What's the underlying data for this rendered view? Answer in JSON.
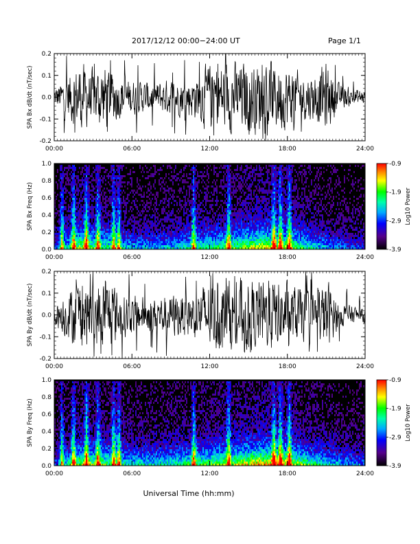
{
  "header": {
    "title": "2017/12/12   00:00−24:00 UT",
    "page": "Page 1/1"
  },
  "chart_data": [
    {
      "type": "line",
      "ylabel": "SPA Bx dB/dt (nT/sec)",
      "xlim": [
        0,
        24
      ],
      "ylim": [
        -0.2,
        0.2
      ],
      "xticks": [
        "00:00",
        "06:00",
        "12:00",
        "18:00",
        "24:00"
      ],
      "yticks": [
        "-0.2",
        "-0.1",
        "0.0",
        "0.1",
        "0.2"
      ],
      "envelope_hours": [
        0,
        1,
        2,
        3,
        4,
        5,
        6,
        7,
        8,
        9,
        10,
        11,
        12,
        13,
        14,
        15,
        16,
        17,
        18,
        19,
        20,
        21,
        22,
        23,
        24
      ],
      "envelope_amplitude": [
        0.05,
        0.12,
        0.2,
        0.15,
        0.2,
        0.12,
        0.1,
        0.09,
        0.09,
        0.1,
        0.1,
        0.13,
        0.2,
        0.2,
        0.2,
        0.2,
        0.2,
        0.2,
        0.18,
        0.14,
        0.13,
        0.2,
        0.07,
        0.05,
        0.04
      ]
    },
    {
      "type": "heatmap",
      "ylabel": "SPA Bx Freq (Hz)",
      "xlim": [
        0,
        24
      ],
      "ylim": [
        0,
        1.0
      ],
      "xticks": [
        "00:00",
        "06:00",
        "12:00",
        "18:00",
        "24:00"
      ],
      "yticks": [
        "0.0",
        "0.2",
        "0.4",
        "0.6",
        "0.8",
        "1.0"
      ],
      "colorbar": {
        "label": "Log10 Power",
        "range": [
          -3.9,
          -0.9
        ],
        "ticks": [
          "-3.9",
          "-2.9",
          "-1.9",
          "-0.9"
        ]
      },
      "burst_hours": [
        0.6,
        1.5,
        2.5,
        3.4,
        4.6,
        5.0,
        10.8,
        13.5,
        17.0,
        17.5,
        18.2
      ],
      "activity_hours": [
        0,
        2,
        4,
        6,
        8,
        10,
        12,
        14,
        16,
        18,
        20,
        22,
        24
      ],
      "activity_level": [
        0.2,
        0.5,
        0.4,
        0.3,
        0.3,
        0.35,
        0.4,
        0.45,
        0.55,
        0.5,
        0.35,
        0.25,
        0.2
      ]
    },
    {
      "type": "line",
      "ylabel": "SPA By dB/dt (nT/sec)",
      "xlim": [
        0,
        24
      ],
      "ylim": [
        -0.2,
        0.2
      ],
      "xticks": [
        "00:00",
        "06:00",
        "12:00",
        "18:00",
        "24:00"
      ],
      "yticks": [
        "-0.2",
        "-0.1",
        "0.0",
        "0.1",
        "0.2"
      ],
      "envelope_hours": [
        0,
        1,
        2,
        3,
        4,
        5,
        6,
        7,
        8,
        9,
        10,
        11,
        12,
        13,
        14,
        15,
        16,
        17,
        18,
        19,
        20,
        21,
        22,
        23,
        24
      ],
      "envelope_amplitude": [
        0.05,
        0.14,
        0.2,
        0.17,
        0.2,
        0.14,
        0.11,
        0.1,
        0.11,
        0.12,
        0.12,
        0.14,
        0.2,
        0.2,
        0.2,
        0.2,
        0.2,
        0.2,
        0.18,
        0.15,
        0.13,
        0.2,
        0.07,
        0.05,
        0.04
      ]
    },
    {
      "type": "heatmap",
      "ylabel": "SPA By Freq (Hz)",
      "xlim": [
        0,
        24
      ],
      "ylim": [
        0,
        1.0
      ],
      "xticks": [
        "00:00",
        "06:00",
        "12:00",
        "18:00",
        "24:00"
      ],
      "yticks": [
        "0.0",
        "0.2",
        "0.4",
        "0.6",
        "0.8",
        "1.0"
      ],
      "colorbar": {
        "label": "Log10 Power",
        "range": [
          -3.9,
          -0.9
        ],
        "ticks": [
          "-3.9",
          "-2.9",
          "-1.9",
          "-0.9"
        ]
      },
      "burst_hours": [
        0.6,
        1.5,
        2.5,
        3.4,
        4.6,
        5.0,
        10.8,
        13.5,
        17.0,
        17.5,
        18.2
      ],
      "activity_hours": [
        0,
        2,
        4,
        6,
        8,
        10,
        12,
        14,
        16,
        18,
        20,
        22,
        24
      ],
      "activity_level": [
        0.2,
        0.5,
        0.45,
        0.35,
        0.35,
        0.4,
        0.45,
        0.5,
        0.6,
        0.55,
        0.4,
        0.3,
        0.25
      ]
    }
  ],
  "footer": {
    "xlabel": "Universal Time (hh:mm)"
  }
}
